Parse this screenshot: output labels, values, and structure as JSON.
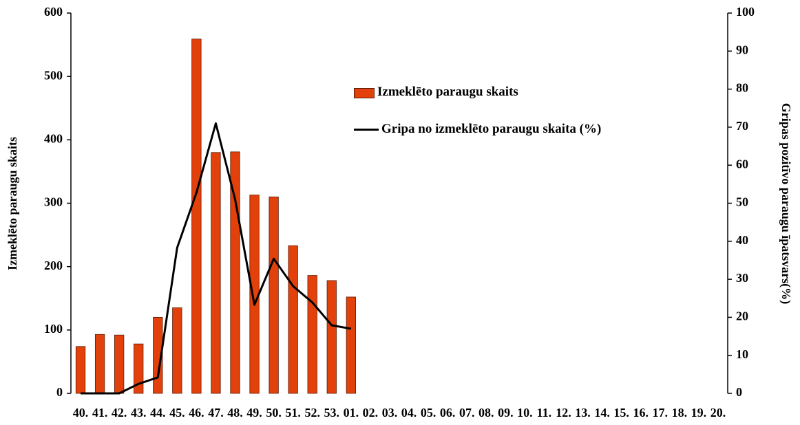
{
  "chart_data": {
    "type": "bar-line",
    "y_label": "Izmeklēto paraugu skaits",
    "y2_label": "Gripas pozitīvo paraugu īpatsvars(%)",
    "categories": [
      "40.",
      "41.",
      "42.",
      "43.",
      "44.",
      "45.",
      "46.",
      "47.",
      "48.",
      "49.",
      "50.",
      "51.",
      "52.",
      "53.",
      "01.",
      "02.",
      "03.",
      "04.",
      "05.",
      "06.",
      "07.",
      "08.",
      "09.",
      "10.",
      "11.",
      "12.",
      "13.",
      "14.",
      "15.",
      "16.",
      "17.",
      "18.",
      "19.",
      "20."
    ],
    "series": [
      {
        "name": "Izmeklēto paraugu skaits",
        "type": "bar",
        "color": "#e2410c",
        "axis": "y",
        "values": [
          74,
          93,
          92,
          78,
          120,
          135,
          559,
          380,
          381,
          313,
          310,
          233,
          186,
          178,
          152,
          null,
          null,
          null,
          null,
          null,
          null,
          null,
          null,
          null,
          null,
          null,
          null,
          null,
          null,
          null,
          null,
          null,
          null,
          null
        ]
      },
      {
        "name": "Gripa no izmeklēto paraugu skaita (%)",
        "type": "line",
        "color": "#000000",
        "axis": "y2",
        "values": [
          0,
          0,
          0,
          2.5,
          4.2,
          38.3,
          52.8,
          71,
          51,
          23.3,
          35.4,
          28.2,
          23.9,
          17.9,
          17,
          null,
          null,
          null,
          null,
          null,
          null,
          null,
          null,
          null,
          null,
          null,
          null,
          null,
          null,
          null,
          null,
          null,
          null,
          null
        ]
      }
    ],
    "ylim": [
      0,
      600
    ],
    "yticks": [
      0,
      100,
      200,
      300,
      400,
      500,
      600
    ],
    "y2lim": [
      0,
      100
    ],
    "y2ticks": [
      0,
      10,
      20,
      30,
      40,
      50,
      60,
      70,
      80,
      90,
      100
    ],
    "grid": false,
    "legend": "top-center"
  }
}
